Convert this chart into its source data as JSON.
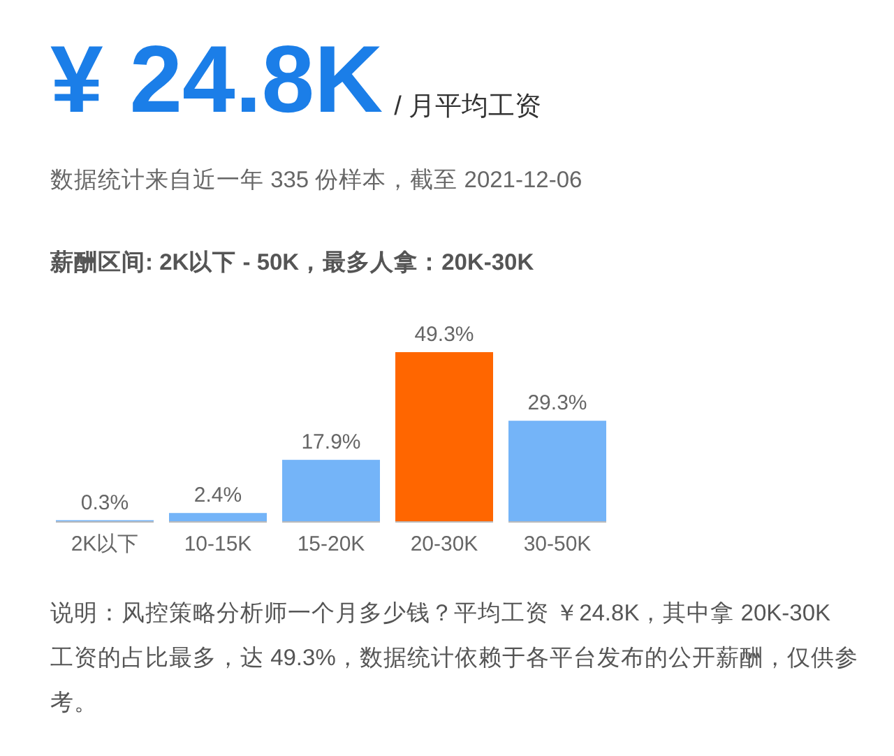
{
  "chart_data": {
    "type": "bar",
    "title": "¥ 24.8K",
    "subtitle": "/ 月平均工资",
    "annotations": [
      "数据统计来自近一年 335 份样本，截至 2021-12-06",
      "薪酬区间: 2K以下 - 50K，最多人拿：20K-30K",
      "说明：风控策略分析师一个月多少钱？平均工资 ￥24.8K，其中拿 20K-30K 工资的占比最多，达 49.3%，数据统计依赖于各平台发布的公开薪酬，仅供参考。"
    ],
    "categories": [
      "2K以下",
      "10-15K",
      "15-20K",
      "20-30K",
      "30-50K"
    ],
    "values": [
      0.3,
      2.4,
      17.9,
      49.3,
      29.3
    ],
    "colors": [
      "#74b4f8",
      "#74b4f8",
      "#74b4f8",
      "#ff6600",
      "#74b4f8"
    ],
    "value_labels": [
      "0.3%",
      "2.4%",
      "17.9%",
      "49.3%",
      "29.3%"
    ]
  }
}
